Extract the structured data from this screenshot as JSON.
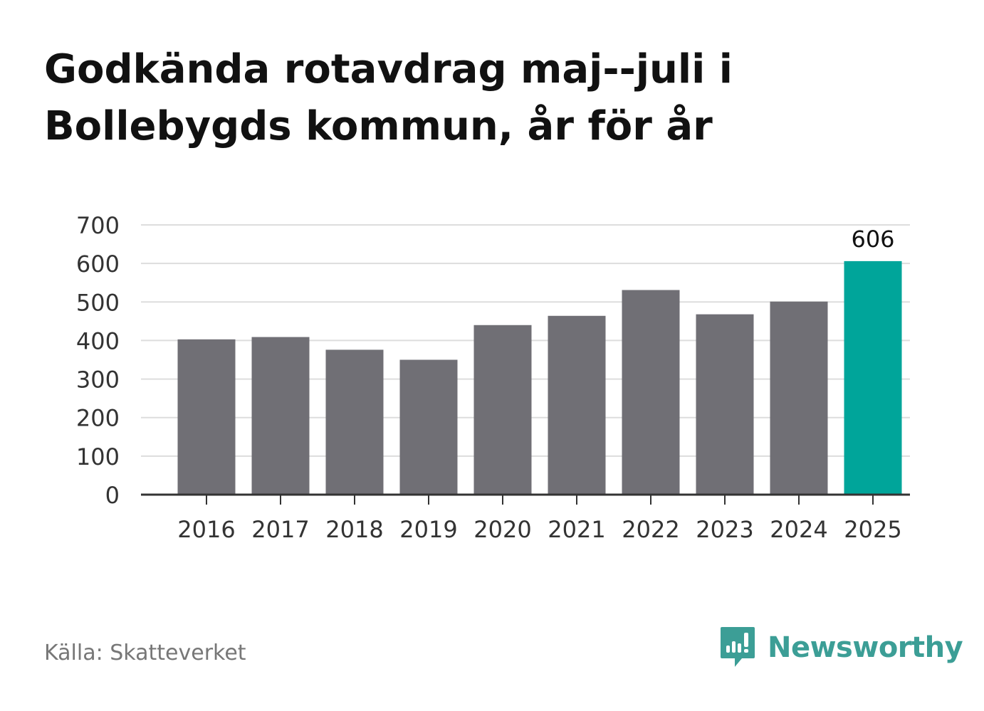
{
  "title_lines": [
    "Godkända rotavdrag maj--juli i",
    "Bollebygds kommun, år för år"
  ],
  "source": "Källa: Skatteverket",
  "brand": {
    "name": "Newsworthy",
    "icon": "newsworthy-logo-icon",
    "color": "#3c9e96"
  },
  "chart_data": {
    "type": "bar",
    "categories": [
      "2016",
      "2017",
      "2018",
      "2019",
      "2020",
      "2021",
      "2022",
      "2023",
      "2024",
      "2025"
    ],
    "values": [
      403,
      409,
      376,
      350,
      440,
      464,
      531,
      468,
      501,
      606
    ],
    "ylim": [
      0,
      700
    ],
    "yticks": [
      0,
      100,
      200,
      300,
      400,
      500,
      600,
      700
    ],
    "bar_color": "#706f75",
    "highlight_color": "#00a59a",
    "highlight_index": 9,
    "data_labels": [
      {
        "index": 9,
        "text": "606"
      }
    ],
    "grid": true,
    "legend": "none"
  }
}
